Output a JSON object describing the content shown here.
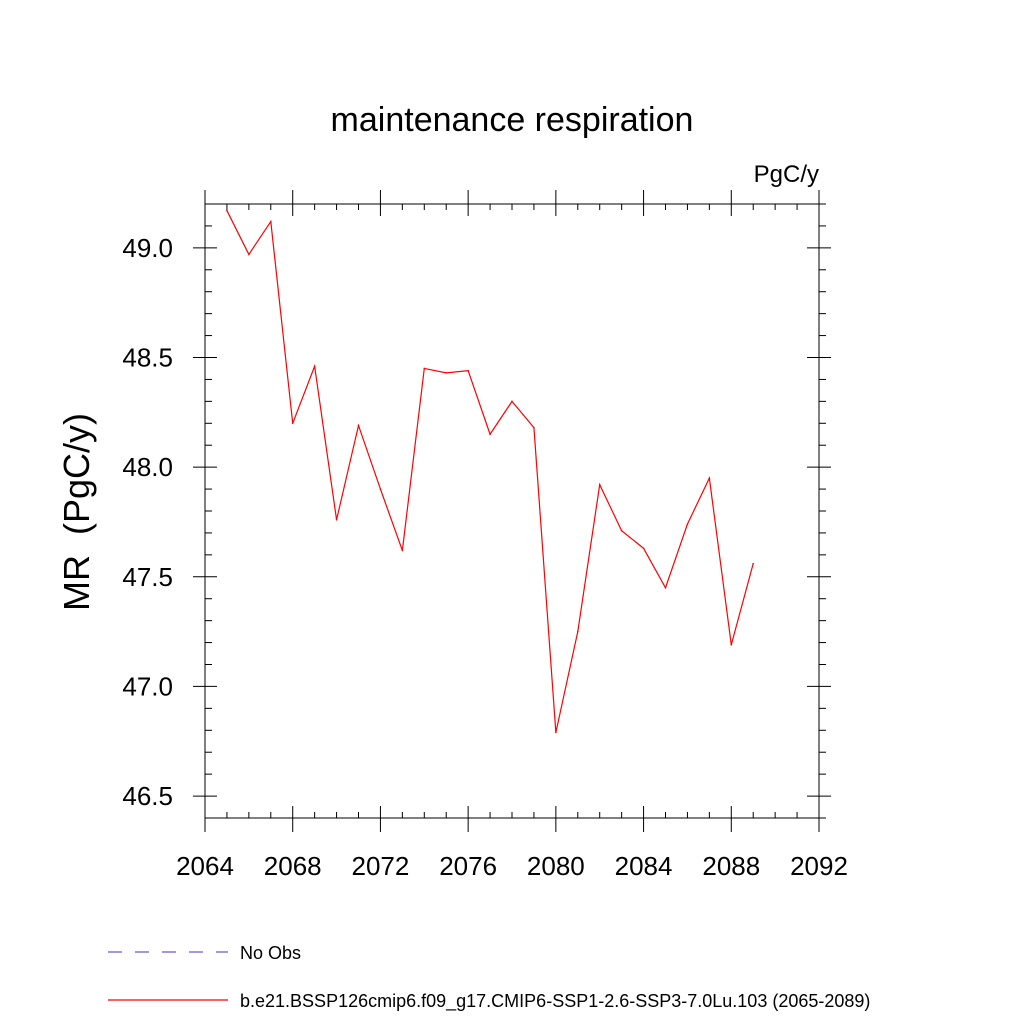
{
  "chart_data": {
    "type": "line",
    "title": "maintenance respiration",
    "units_label": "PgC/y",
    "ylabel": "MR  (PgC/y)",
    "xlabel": "",
    "xlim": [
      2064,
      2092
    ],
    "ylim": [
      46.4,
      49.2
    ],
    "x_ticks": [
      2064,
      2068,
      2072,
      2076,
      2080,
      2084,
      2088,
      2092
    ],
    "x_minor_step": 1,
    "y_ticks": [
      "46.5",
      "47.0",
      "47.5",
      "48.0",
      "48.5",
      "49.0"
    ],
    "y_minor_step": 0.1,
    "grid": false,
    "series": [
      {
        "name": "b.e21.BSSP126cmip6.f09_g17.CMIP6-SSP1-2.6-SSP3-7.0Lu.103 (2065-2089)",
        "color": "#ff0000",
        "x": [
          2065,
          2066,
          2067,
          2068,
          2069,
          2070,
          2071,
          2072,
          2073,
          2074,
          2075,
          2076,
          2077,
          2078,
          2079,
          2080,
          2081,
          2082,
          2083,
          2084,
          2085,
          2086,
          2087,
          2088,
          2089
        ],
        "y": [
          49.17,
          48.97,
          49.12,
          48.2,
          48.46,
          47.76,
          48.19,
          47.9,
          47.62,
          48.45,
          48.43,
          48.44,
          48.15,
          48.3,
          48.18,
          46.79,
          47.25,
          47.92,
          47.71,
          47.63,
          47.45,
          47.74,
          47.95,
          47.19,
          47.56
        ]
      }
    ],
    "legend": [
      {
        "label": "No Obs",
        "color": "#6a5acd",
        "style": "dashed"
      },
      {
        "label": "b.e21.BSSP126cmip6.f09_g17.CMIP6-SSP1-2.6-SSP3-7.0Lu.103 (2065-2089)",
        "color": "#ff0000",
        "style": "solid"
      }
    ],
    "legend_position": "bottom-left"
  }
}
